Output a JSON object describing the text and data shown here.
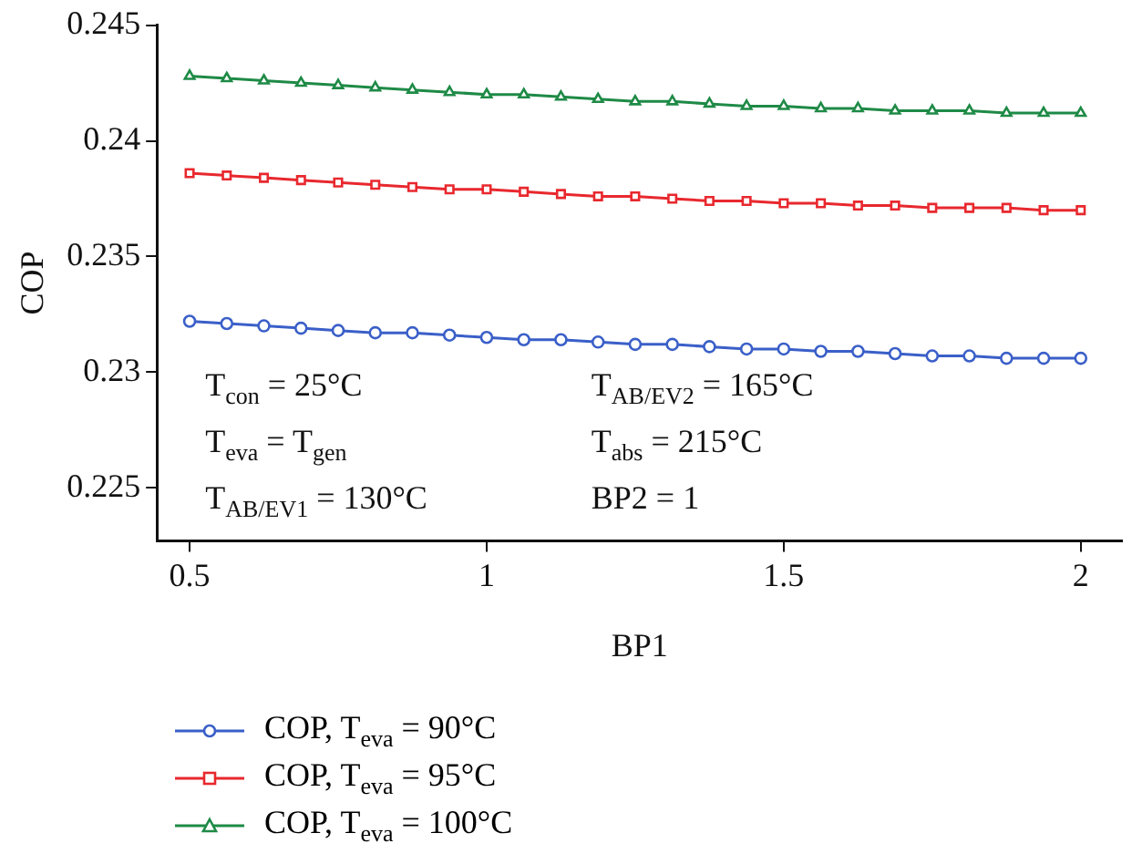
{
  "chart_data": {
    "type": "line",
    "xlabel": "BP1",
    "ylabel": "COP",
    "x": [
      0.5,
      0.5625,
      0.625,
      0.6875,
      0.75,
      0.8125,
      0.875,
      0.9375,
      1,
      1.0625,
      1.125,
      1.1875,
      1.25,
      1.3125,
      1.375,
      1.4375,
      1.5,
      1.5625,
      1.625,
      1.6875,
      1.75,
      1.8125,
      1.875,
      1.9375,
      2
    ],
    "series": [
      {
        "name": "COP, T$_{eva}$ = 90°C",
        "color": "#3a5fc8",
        "marker": "circle",
        "values": [
          0.2322,
          0.2321,
          0.232,
          0.2319,
          0.2318,
          0.2317,
          0.2317,
          0.2316,
          0.2315,
          0.2314,
          0.2314,
          0.2313,
          0.2312,
          0.2312,
          0.2311,
          0.231,
          0.231,
          0.2309,
          0.2309,
          0.2308,
          0.2307,
          0.2307,
          0.2306,
          0.2306,
          0.2306
        ]
      },
      {
        "name": "COP, T$_{eva}$ = 95°C",
        "color": "#e8282e",
        "marker": "square",
        "values": [
          0.2386,
          0.2385,
          0.2384,
          0.2383,
          0.2382,
          0.2381,
          0.238,
          0.2379,
          0.2379,
          0.2378,
          0.2377,
          0.2376,
          0.2376,
          0.2375,
          0.2374,
          0.2374,
          0.2373,
          0.2373,
          0.2372,
          0.2372,
          0.2371,
          0.2371,
          0.2371,
          0.237,
          0.237
        ]
      },
      {
        "name": "COP, T$_{eva}$ = 100°C",
        "color": "#1e8a46",
        "marker": "triangle",
        "values": [
          0.2428,
          0.2427,
          0.2426,
          0.2425,
          0.2424,
          0.2423,
          0.2422,
          0.2421,
          0.242,
          0.242,
          0.2419,
          0.2418,
          0.2417,
          0.2417,
          0.2416,
          0.2415,
          0.2415,
          0.2414,
          0.2414,
          0.2413,
          0.2413,
          0.2413,
          0.2412,
          0.2412,
          0.2412
        ]
      }
    ],
    "xlim": [
      0.445,
      2.07
    ],
    "xticks": [
      0.5,
      1,
      1.5,
      2
    ],
    "ylim": [
      0.2227,
      0.245
    ],
    "yticks": [
      0.225,
      0.23,
      0.235,
      0.24,
      0.245
    ],
    "grid": false,
    "legend": "bottom",
    "line_style": "solid",
    "annotations": [
      "T$_{con}$ = 25°C",
      "T$_{eva}$ = T$_{gen}$",
      "T$_{AB/EV1}$ = 130°C",
      "T$_{AB/EV2}$ = 165°C",
      "T$_{abs}$ = 215°C",
      "BP2 = 1"
    ]
  }
}
